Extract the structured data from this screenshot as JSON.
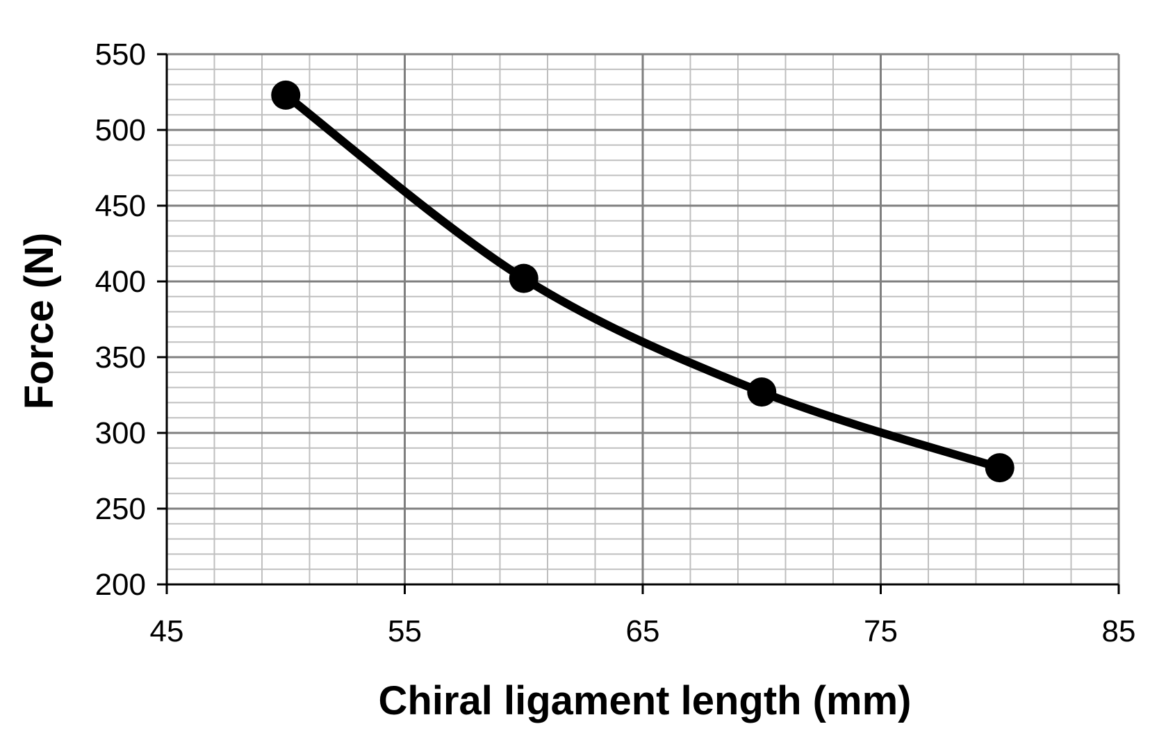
{
  "chart_data": {
    "type": "line",
    "title": "",
    "xlabel": "Chiral ligament length (mm)",
    "ylabel": "Force (N)",
    "xlim": [
      45,
      85
    ],
    "ylim": [
      200,
      550
    ],
    "x_ticks": [
      "45",
      "55",
      "65",
      "75",
      "85"
    ],
    "y_ticks": [
      "200",
      "250",
      "300",
      "350",
      "400",
      "450",
      "500",
      "550"
    ],
    "x_major_step": 10,
    "x_minor_step": 2,
    "y_major_step": 50,
    "y_minor_step": 10,
    "grid": true,
    "legend": "none",
    "smooth": true,
    "series": [
      {
        "x": [
          50,
          60,
          70,
          80
        ],
        "y": [
          523,
          402,
          327,
          277
        ],
        "color": "#000000",
        "marker": "circle"
      }
    ],
    "colors": {
      "major_grid": "#7f7f7f",
      "minor_grid": "#bfbfbf",
      "axis": "#000000",
      "series": "#000000"
    }
  }
}
